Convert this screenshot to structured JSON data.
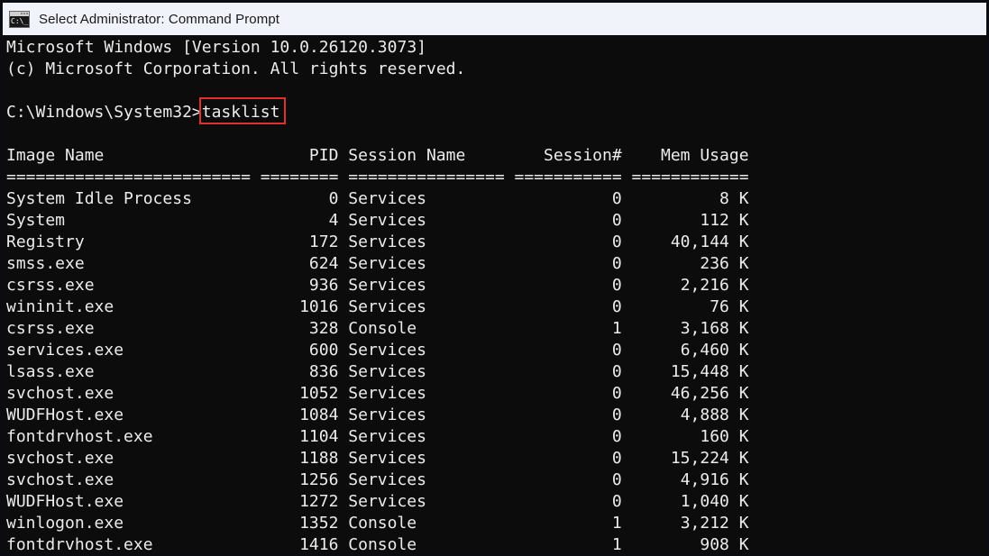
{
  "window": {
    "title": "Select Administrator: Command Prompt",
    "icon": "command-prompt-icon",
    "icon_glyph": "C:\\_"
  },
  "colors": {
    "titlebar_bg": "#f0f3f9",
    "titlebar_text": "#191919",
    "console_bg": "#0c0c0c",
    "console_text": "#ececec",
    "highlight_red": "#e0312d",
    "window_border": "#0b0b12"
  },
  "terminal": {
    "banner_line1": "Microsoft Windows [Version 10.0.26120.3073]",
    "banner_line2": "(c) Microsoft Corporation. All rights reserved.",
    "prompt": "C:\\Windows\\System32>",
    "command": "tasklist",
    "table": {
      "headers": {
        "image_name": "Image Name",
        "pid": "PID",
        "session_name": "Session Name",
        "session_num": "Session#",
        "mem_usage": "Mem Usage"
      },
      "separators": {
        "image_name": "=========================",
        "pid": "========",
        "session_name": "================",
        "session_num": "===========",
        "mem_usage": "============"
      },
      "rows": [
        {
          "image_name": "System Idle Process",
          "pid": "0",
          "session_name": "Services",
          "session_num": "0",
          "mem_usage": "8 K"
        },
        {
          "image_name": "System",
          "pid": "4",
          "session_name": "Services",
          "session_num": "0",
          "mem_usage": "112 K"
        },
        {
          "image_name": "Registry",
          "pid": "172",
          "session_name": "Services",
          "session_num": "0",
          "mem_usage": "40,144 K"
        },
        {
          "image_name": "smss.exe",
          "pid": "624",
          "session_name": "Services",
          "session_num": "0",
          "mem_usage": "236 K"
        },
        {
          "image_name": "csrss.exe",
          "pid": "936",
          "session_name": "Services",
          "session_num": "0",
          "mem_usage": "2,216 K"
        },
        {
          "image_name": "wininit.exe",
          "pid": "1016",
          "session_name": "Services",
          "session_num": "0",
          "mem_usage": "76 K"
        },
        {
          "image_name": "csrss.exe",
          "pid": "328",
          "session_name": "Console",
          "session_num": "1",
          "mem_usage": "3,168 K"
        },
        {
          "image_name": "services.exe",
          "pid": "600",
          "session_name": "Services",
          "session_num": "0",
          "mem_usage": "6,460 K"
        },
        {
          "image_name": "lsass.exe",
          "pid": "836",
          "session_name": "Services",
          "session_num": "0",
          "mem_usage": "15,448 K"
        },
        {
          "image_name": "svchost.exe",
          "pid": "1052",
          "session_name": "Services",
          "session_num": "0",
          "mem_usage": "46,256 K"
        },
        {
          "image_name": "WUDFHost.exe",
          "pid": "1084",
          "session_name": "Services",
          "session_num": "0",
          "mem_usage": "4,888 K"
        },
        {
          "image_name": "fontdrvhost.exe",
          "pid": "1104",
          "session_name": "Services",
          "session_num": "0",
          "mem_usage": "160 K"
        },
        {
          "image_name": "svchost.exe",
          "pid": "1188",
          "session_name": "Services",
          "session_num": "0",
          "mem_usage": "15,224 K"
        },
        {
          "image_name": "svchost.exe",
          "pid": "1256",
          "session_name": "Services",
          "session_num": "0",
          "mem_usage": "4,916 K"
        },
        {
          "image_name": "WUDFHost.exe",
          "pid": "1272",
          "session_name": "Services",
          "session_num": "0",
          "mem_usage": "1,040 K"
        },
        {
          "image_name": "winlogon.exe",
          "pid": "1352",
          "session_name": "Console",
          "session_num": "1",
          "mem_usage": "3,212 K"
        },
        {
          "image_name": "fontdrvhost.exe",
          "pid": "1416",
          "session_name": "Console",
          "session_num": "1",
          "mem_usage": "908 K"
        }
      ]
    }
  }
}
